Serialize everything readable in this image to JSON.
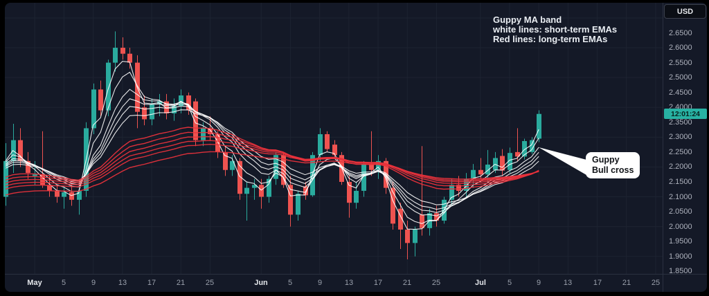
{
  "chart_data": {
    "type": "candlestick",
    "title_annotation": {
      "line1": "Guppy MA band",
      "line2": "white lines: short-term EMAs",
      "line3": "Red lines: long-term EMAs"
    },
    "callout": {
      "line1": "Guppy",
      "line2": "Bull cross"
    },
    "price_axis": {
      "currency": "USD",
      "countdown": "12:01:24",
      "ticks": [
        "2.6500",
        "2.6000",
        "2.5500",
        "2.5000",
        "2.4500",
        "2.4000",
        "2.3500",
        "2.3000",
        "2.2500",
        "2.2000",
        "2.1500",
        "2.1000",
        "2.0500",
        "2.0000",
        "1.9500",
        "1.9000",
        "1.8500"
      ]
    },
    "time_axis": {
      "ticks": [
        {
          "label": "May",
          "i": 4,
          "month": true
        },
        {
          "label": "5",
          "i": 8
        },
        {
          "label": "9",
          "i": 12
        },
        {
          "label": "13",
          "i": 16
        },
        {
          "label": "17",
          "i": 20
        },
        {
          "label": "21",
          "i": 24
        },
        {
          "label": "25",
          "i": 28
        },
        {
          "label": "Jun",
          "i": 35,
          "month": true
        },
        {
          "label": "5",
          "i": 39
        },
        {
          "label": "9",
          "i": 43
        },
        {
          "label": "13",
          "i": 47
        },
        {
          "label": "17",
          "i": 51
        },
        {
          "label": "21",
          "i": 55
        },
        {
          "label": "25",
          "i": 59
        },
        {
          "label": "Jul",
          "i": 65,
          "month": true
        },
        {
          "label": "5",
          "i": 69
        },
        {
          "label": "9",
          "i": 73
        },
        {
          "label": "13",
          "i": 77
        },
        {
          "label": "17",
          "i": 81
        },
        {
          "label": "21",
          "i": 85
        },
        {
          "label": "25",
          "i": 89
        }
      ]
    },
    "ylim": [
      1.84,
      2.72
    ],
    "grid_price_step": 0.1,
    "grid_price_max": 2.7,
    "grid_price_min": 1.9,
    "ema_overlays": {
      "short_term_periods": [
        3,
        5,
        8,
        10,
        12,
        15
      ],
      "long_term_periods": [
        30,
        35,
        40,
        45,
        50,
        60
      ]
    },
    "colors": {
      "background": "#141927",
      "grid": "#1d2331",
      "axis_separator": "#2b3140",
      "candle_up": "#2aab9e",
      "candle_down": "#ef5350",
      "short_ema": "#ffffff",
      "long_ema": "#e8313b",
      "badge_bg": "#28b2a3",
      "callout_bg": "#ffffff"
    },
    "candles": [
      [
        2.1,
        2.28,
        2.07,
        2.22
      ],
      [
        2.22,
        2.345,
        2.18,
        2.29
      ],
      [
        2.29,
        2.33,
        2.2,
        2.22
      ],
      [
        2.22,
        2.25,
        2.16,
        2.18
      ],
      [
        2.17,
        2.22,
        2.14,
        2.175
      ],
      [
        2.175,
        2.32,
        2.13,
        2.14
      ],
      [
        2.14,
        2.17,
        2.1,
        2.12
      ],
      [
        2.12,
        2.14,
        2.08,
        2.1
      ],
      [
        2.1,
        2.135,
        2.06,
        2.115
      ],
      [
        2.115,
        2.14,
        2.07,
        2.09
      ],
      [
        2.09,
        2.13,
        2.04,
        2.12
      ],
      [
        2.12,
        2.35,
        2.1,
        2.33
      ],
      [
        2.33,
        2.48,
        2.31,
        2.46
      ],
      [
        2.46,
        2.49,
        2.37,
        2.39
      ],
      [
        2.39,
        2.56,
        2.37,
        2.55
      ],
      [
        2.55,
        2.655,
        2.52,
        2.6
      ],
      [
        2.6,
        2.635,
        2.56,
        2.58
      ],
      [
        2.58,
        2.6,
        2.53,
        2.55
      ],
      [
        2.55,
        2.575,
        2.33,
        2.385
      ],
      [
        2.4,
        2.44,
        2.34,
        2.36
      ],
      [
        2.36,
        2.43,
        2.34,
        2.41
      ],
      [
        2.41,
        2.445,
        2.37,
        2.42
      ],
      [
        2.42,
        2.445,
        2.36,
        2.38
      ],
      [
        2.38,
        2.43,
        2.355,
        2.405
      ],
      [
        2.405,
        2.46,
        2.38,
        2.44
      ],
      [
        2.44,
        2.45,
        2.375,
        2.39
      ],
      [
        2.42,
        2.43,
        2.27,
        2.29
      ],
      [
        2.29,
        2.35,
        2.27,
        2.33
      ],
      [
        2.33,
        2.37,
        2.29,
        2.31
      ],
      [
        2.31,
        2.32,
        2.23,
        2.25
      ],
      [
        2.25,
        2.27,
        2.17,
        2.19
      ],
      [
        2.19,
        2.24,
        2.17,
        2.22
      ],
      [
        2.22,
        2.23,
        2.09,
        2.11
      ],
      [
        2.11,
        2.15,
        2.02,
        2.13
      ],
      [
        2.13,
        2.16,
        2.09,
        2.14
      ],
      [
        2.14,
        2.16,
        2.06,
        2.1
      ],
      [
        2.1,
        2.17,
        2.08,
        2.16
      ],
      [
        2.16,
        2.25,
        2.14,
        2.24
      ],
      [
        2.24,
        2.25,
        2.13,
        2.14
      ],
      [
        2.14,
        2.17,
        2.0,
        2.04
      ],
      [
        2.04,
        2.12,
        2.02,
        2.11
      ],
      [
        2.135,
        2.15,
        2.09,
        2.105
      ],
      [
        2.105,
        2.25,
        2.1,
        2.24
      ],
      [
        2.24,
        2.33,
        2.22,
        2.31
      ],
      [
        2.31,
        2.32,
        2.25,
        2.26
      ],
      [
        2.275,
        2.29,
        2.23,
        2.24
      ],
      [
        2.24,
        2.25,
        2.14,
        2.15
      ],
      [
        2.15,
        2.17,
        2.03,
        2.08
      ],
      [
        2.08,
        2.15,
        2.06,
        2.12
      ],
      [
        2.12,
        2.22,
        2.1,
        2.21
      ],
      [
        2.21,
        2.32,
        2.17,
        2.19
      ],
      [
        2.19,
        2.24,
        2.16,
        2.22
      ],
      [
        2.22,
        2.23,
        2.11,
        2.13
      ],
      [
        2.13,
        2.15,
        1.99,
        2.01
      ],
      [
        2.06,
        2.08,
        1.925,
        1.99
      ],
      [
        1.99,
        2.02,
        1.89,
        1.945
      ],
      [
        1.945,
        2.0,
        1.9,
        1.99
      ],
      [
        2.04,
        2.27,
        1.97,
        1.995
      ],
      [
        1.995,
        2.06,
        1.97,
        2.045
      ],
      [
        2.045,
        2.07,
        2.0,
        2.02
      ],
      [
        2.02,
        2.1,
        2.01,
        2.09
      ],
      [
        2.09,
        2.16,
        2.07,
        2.14
      ],
      [
        2.14,
        2.17,
        2.1,
        2.12
      ],
      [
        2.12,
        2.18,
        2.1,
        2.16
      ],
      [
        2.16,
        2.21,
        2.13,
        2.19
      ],
      [
        2.19,
        2.23,
        2.16,
        2.175
      ],
      [
        2.175,
        2.257,
        2.15,
        2.208
      ],
      [
        2.19,
        2.25,
        2.18,
        2.23
      ],
      [
        2.237,
        2.26,
        2.17,
        2.188
      ],
      [
        2.19,
        2.265,
        2.18,
        2.247
      ],
      [
        2.25,
        2.33,
        2.22,
        2.235
      ],
      [
        2.235,
        2.295,
        2.225,
        2.287
      ],
      [
        2.25,
        2.3,
        2.243,
        2.29
      ],
      [
        2.295,
        2.39,
        2.283,
        2.378
      ]
    ]
  }
}
